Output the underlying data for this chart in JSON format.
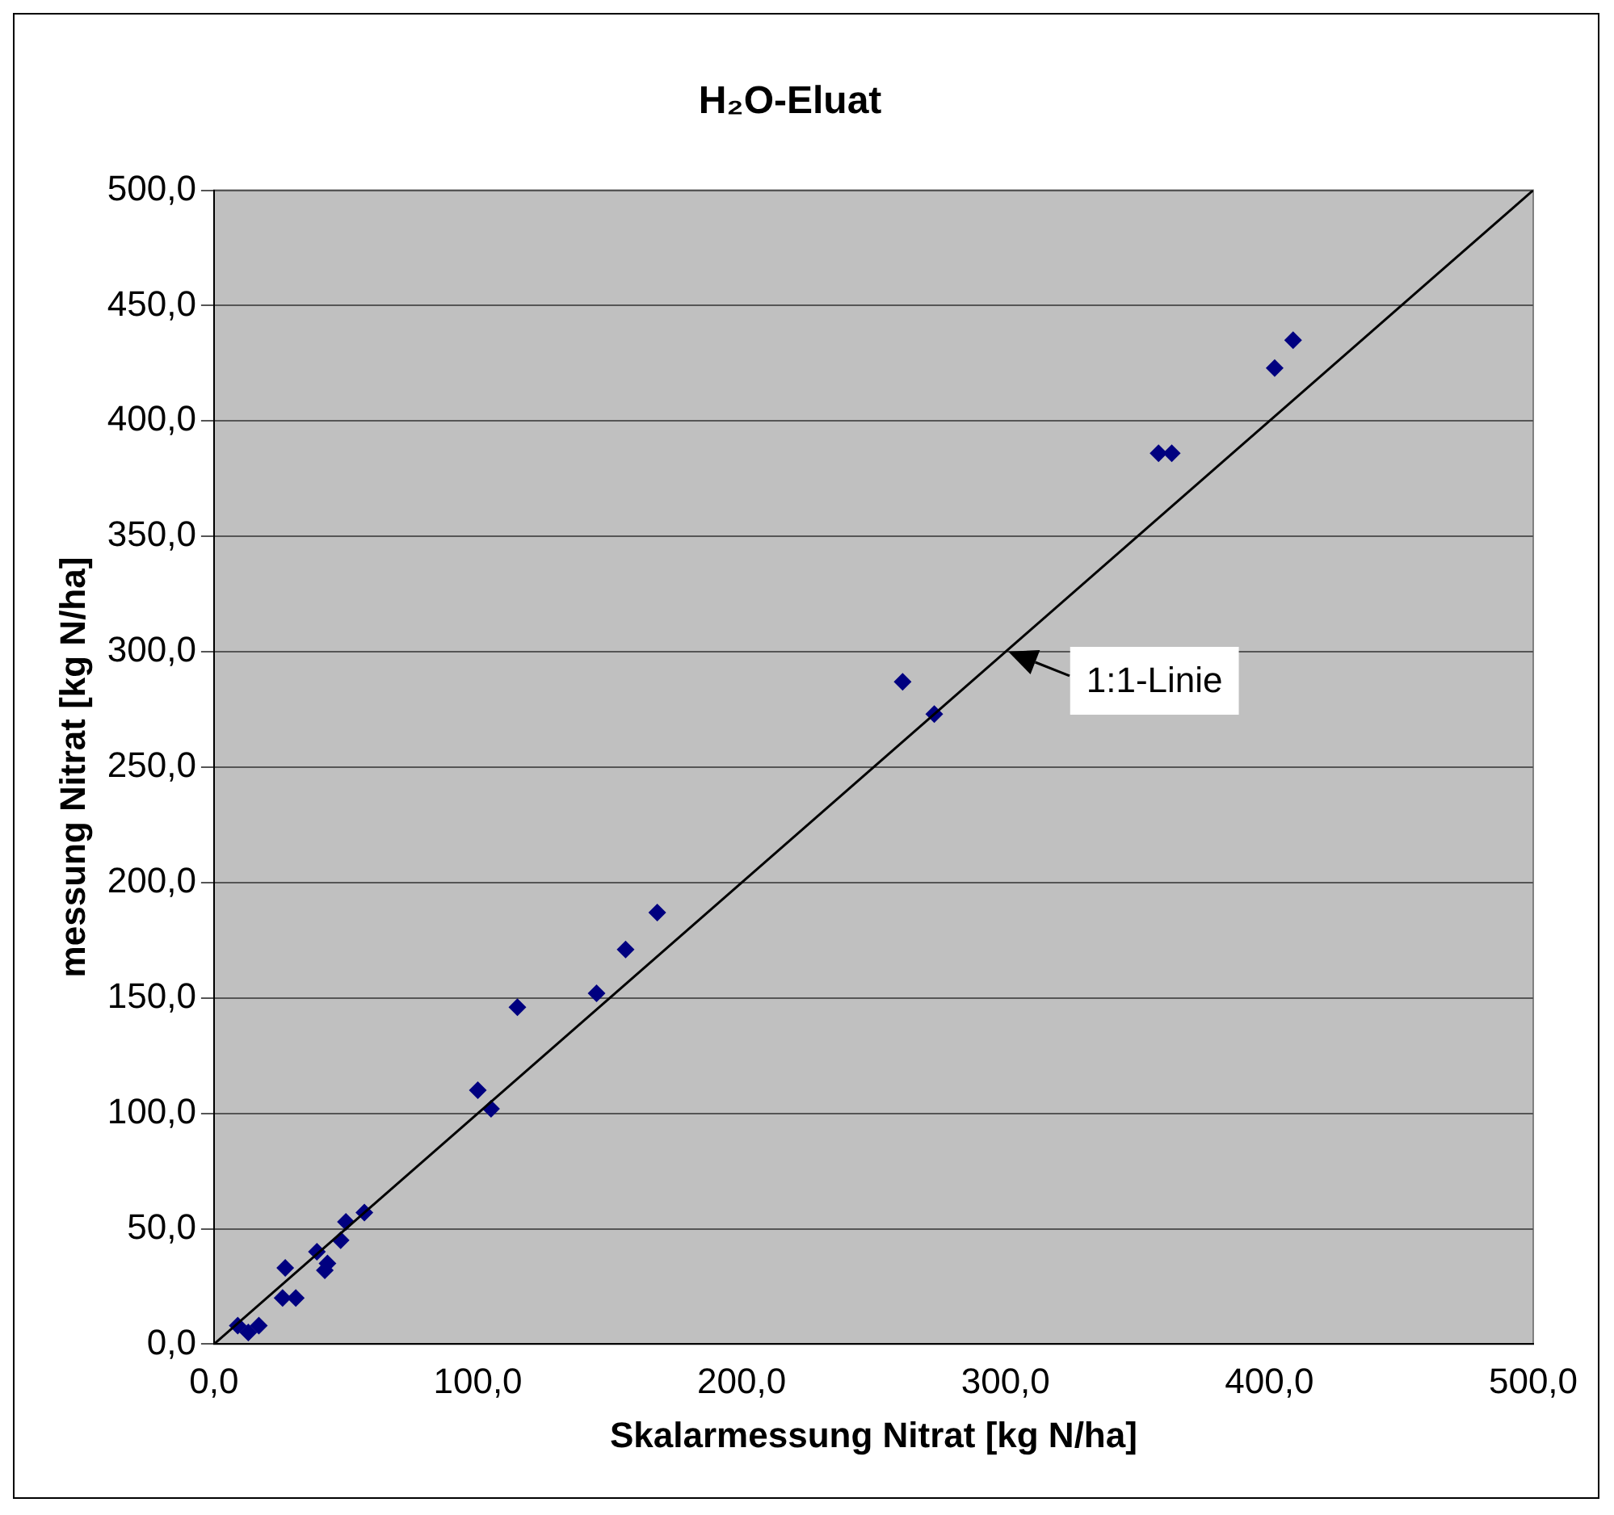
{
  "chart_data": {
    "type": "scatter",
    "title": "H₂O-Eluat",
    "xlabel": "Skalarmessung Nitrat [kg N/ha]",
    "ylabel": "messung Nitrat [kg N/ha]",
    "series": [
      {
        "color": "#000080",
        "marker": "diamond",
        "x": [
          9,
          13,
          17,
          26,
          31,
          27,
          39,
          43,
          42,
          48,
          50,
          57,
          100,
          105,
          115,
          145,
          156,
          168,
          261,
          273,
          358,
          363,
          402,
          409
        ],
        "values": [
          8,
          5,
          8,
          20,
          20,
          33,
          40,
          35,
          32,
          45,
          53,
          57,
          110,
          102,
          146,
          152,
          171,
          187,
          287,
          273,
          386,
          386,
          423,
          435
        ]
      },
      {
        "type": "line",
        "color": "#000000",
        "marker": "none",
        "line_style": "solid",
        "x": [
          0,
          500
        ],
        "values": [
          0,
          500
        ]
      }
    ],
    "annotations": [
      {
        "text": "1:1-Linie",
        "x": 300,
        "y": 300
      }
    ],
    "xlim": [
      0,
      500
    ],
    "ylim": [
      0,
      500
    ],
    "xticks": [
      {
        "value": 0,
        "label": "0,0"
      },
      {
        "value": 100,
        "label": "100,0"
      },
      {
        "value": 200,
        "label": "200,0"
      },
      {
        "value": 300,
        "label": "300,0"
      },
      {
        "value": 400,
        "label": "400,0"
      },
      {
        "value": 500,
        "label": "500,0"
      }
    ],
    "yticks": [
      {
        "value": 0,
        "label": "0,0"
      },
      {
        "value": 50,
        "label": "50,0"
      },
      {
        "value": 100,
        "label": "100,0"
      },
      {
        "value": 150,
        "label": "150,0"
      },
      {
        "value": 200,
        "label": "200,0"
      },
      {
        "value": 250,
        "label": "250,0"
      },
      {
        "value": 300,
        "label": "300,0"
      },
      {
        "value": 350,
        "label": "350,0"
      },
      {
        "value": 400,
        "label": "400,0"
      },
      {
        "value": 450,
        "label": "450,0"
      },
      {
        "value": 500,
        "label": "500,0"
      }
    ],
    "grid": "y",
    "legend": false
  }
}
